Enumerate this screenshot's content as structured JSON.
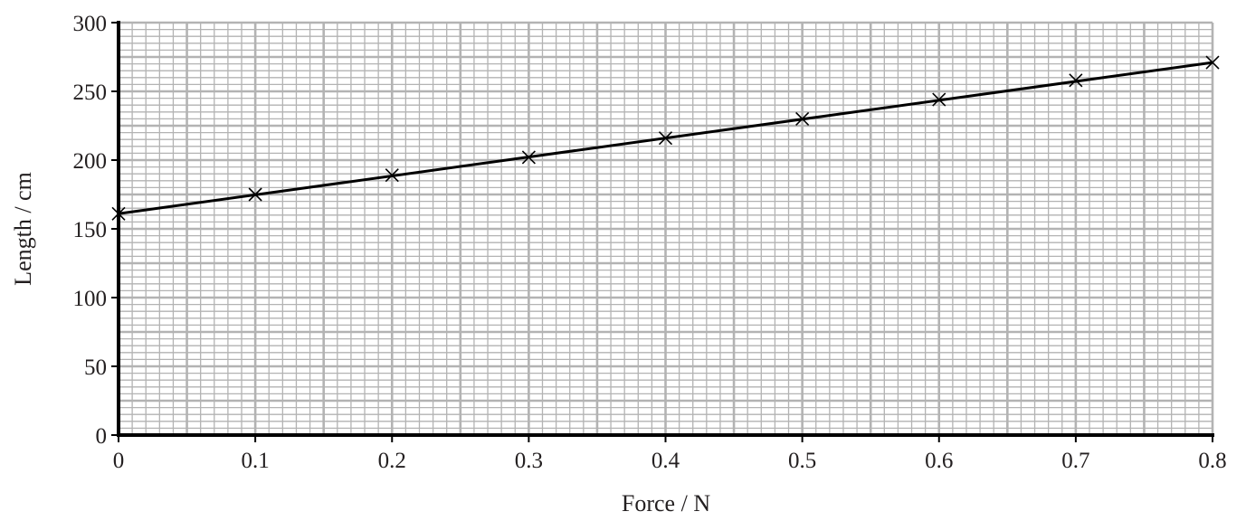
{
  "chart_data": {
    "type": "scatter",
    "title": "",
    "xlabel": "Force / N",
    "ylabel": "Length / cm",
    "xlim": [
      0,
      0.8
    ],
    "ylim": [
      0,
      300
    ],
    "x_ticks": [
      "0",
      "0.1",
      "0.2",
      "0.3",
      "0.4",
      "0.5",
      "0.6",
      "0.7",
      "0.8"
    ],
    "y_ticks": [
      "0",
      "50",
      "100",
      "150",
      "200",
      "250",
      "300"
    ],
    "grid": true,
    "series": [
      {
        "x": [
          0,
          0.1,
          0.2,
          0.3,
          0.4,
          0.5,
          0.6,
          0.7,
          0.8
        ],
        "y": [
          161,
          175,
          189,
          202,
          216,
          230,
          244,
          258,
          271
        ],
        "marker": "cross"
      }
    ],
    "best_fit_line": {
      "x": [
        0,
        0.8
      ],
      "y": [
        161,
        271
      ]
    },
    "colors": {
      "grid": "#b3b3b3",
      "axis": "#000000",
      "line": "#000000",
      "text": "#231f20"
    }
  }
}
